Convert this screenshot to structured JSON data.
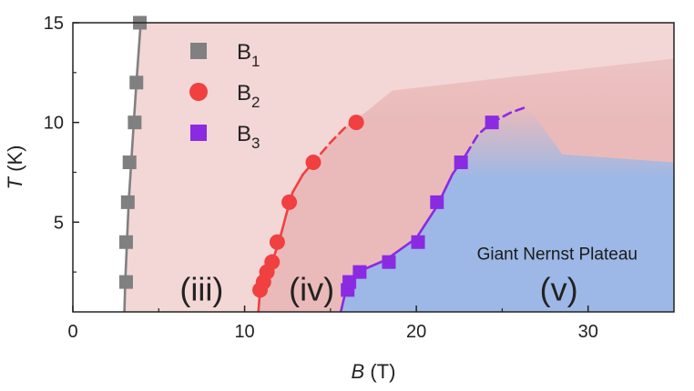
{
  "chart_data": {
    "type": "scatter",
    "title": "",
    "xlabel": {
      "italic": "B",
      "unit": " (T)"
    },
    "ylabel": {
      "italic": "T",
      "unit": " (K)"
    },
    "xlim": [
      0,
      35
    ],
    "ylim": [
      0.5,
      15
    ],
    "xticks": [
      0,
      10,
      20,
      30
    ],
    "yticks": [
      5,
      10,
      15
    ],
    "grid": false,
    "legend_position": "top-left",
    "series": [
      {
        "name": "B1",
        "label_main": "B",
        "label_sub": "1",
        "marker": "square",
        "color": "#808080",
        "points": [
          [
            3.1,
            2
          ],
          [
            3.1,
            4
          ],
          [
            3.2,
            6
          ],
          [
            3.3,
            8
          ],
          [
            3.6,
            10
          ],
          [
            3.7,
            12
          ],
          [
            3.9,
            15
          ]
        ],
        "curve": [
          [
            3.0,
            0.5
          ],
          [
            3.05,
            2
          ],
          [
            3.15,
            4
          ],
          [
            3.25,
            6
          ],
          [
            3.4,
            8
          ],
          [
            3.55,
            10
          ],
          [
            3.7,
            12
          ],
          [
            3.95,
            15
          ]
        ],
        "curve_dashed": []
      },
      {
        "name": "B2",
        "label_main": "B",
        "label_sub": "2",
        "marker": "circle",
        "color": "#f04040",
        "points": [
          [
            10.9,
            1.6
          ],
          [
            11.1,
            2
          ],
          [
            11.3,
            2.5
          ],
          [
            11.6,
            3
          ],
          [
            11.9,
            4
          ],
          [
            12.6,
            6
          ],
          [
            14.0,
            8
          ],
          [
            16.5,
            10
          ]
        ],
        "curve": [
          [
            10.8,
            0.5
          ],
          [
            10.9,
            1.6
          ],
          [
            11.2,
            2.3
          ],
          [
            11.6,
            3
          ],
          [
            12.0,
            4
          ],
          [
            12.4,
            5.3
          ],
          [
            12.8,
            6.5
          ],
          [
            13.4,
            7.4
          ]
        ],
        "curve_dashed": [
          [
            13.4,
            7.4
          ],
          [
            14.2,
            8.2
          ],
          [
            15.0,
            9
          ],
          [
            15.8,
            9.7
          ],
          [
            16.6,
            10.2
          ]
        ]
      },
      {
        "name": "B3",
        "label_main": "B",
        "label_sub": "3",
        "marker": "square",
        "color": "#8a2be2",
        "points": [
          [
            16.0,
            1.6
          ],
          [
            16.1,
            2
          ],
          [
            16.7,
            2.5
          ],
          [
            18.4,
            3
          ],
          [
            20.1,
            4
          ],
          [
            21.2,
            6
          ],
          [
            22.6,
            8
          ],
          [
            24.4,
            10
          ]
        ],
        "curve": [
          [
            15.6,
            0.5
          ],
          [
            15.9,
            1.6
          ],
          [
            16.6,
            2.5
          ],
          [
            18.2,
            3.1
          ],
          [
            20.0,
            4.2
          ],
          [
            21.2,
            5.8
          ],
          [
            22.1,
            7.4
          ],
          [
            22.9,
            8.4
          ]
        ],
        "curve_dashed": [
          [
            22.9,
            8.4
          ],
          [
            23.6,
            9.4
          ],
          [
            24.4,
            10
          ],
          [
            25.5,
            10.5
          ],
          [
            26.5,
            10.8
          ]
        ]
      }
    ],
    "regions": [
      {
        "label": "(iii)",
        "x": 7.5,
        "y": 1.7
      },
      {
        "label": "(iv)",
        "x": 13.9,
        "y": 1.7
      },
      {
        "label": "(v)",
        "x": 28.3,
        "y": 1.7
      }
    ],
    "annotations": [
      {
        "text": "Giant Nernst Plateau",
        "x": 28.2,
        "y": 3.4
      }
    ],
    "colors": {
      "region_iii": "#f3d6d6",
      "region_iv": "#e8b4b4",
      "region_v": "#9db8e6",
      "axis": "#222222"
    }
  }
}
